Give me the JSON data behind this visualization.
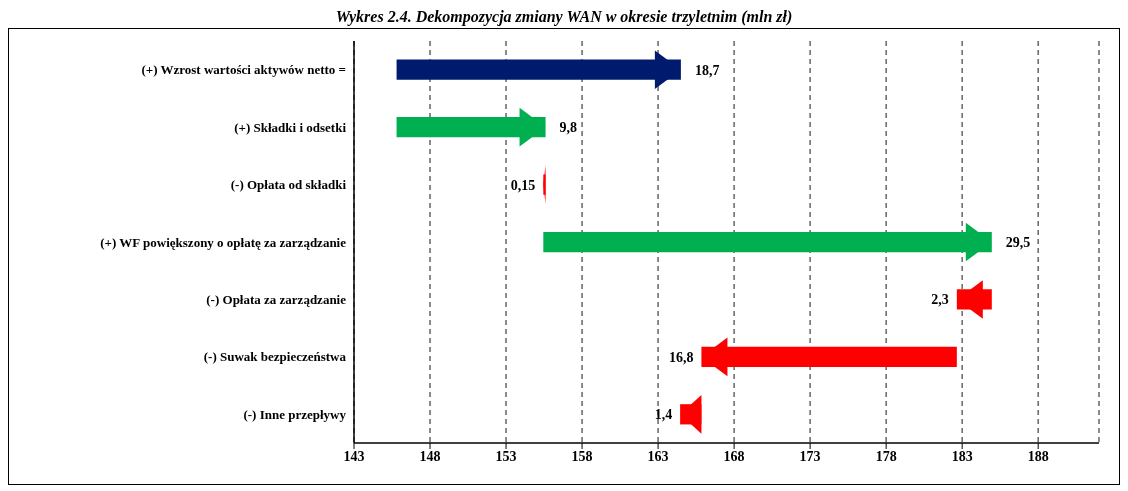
{
  "chart_data": {
    "type": "bar",
    "orientation": "horizontal",
    "title": "Wykres 2.4. Dekompozycja zmiany WAN w okresie trzyletnim (mln zł)",
    "categories": [
      "(+) Wzrost wartości aktywów netto =",
      "(+) Składki i odsetki",
      "(-) Opłata od składki",
      "(+) WF powiększony o opłatę za zarządzanie",
      "(-) Opłata za zarządzanie",
      "(-) Suwak bezpieczeństwa",
      "(-) Inne przepływy"
    ],
    "base": [
      145.8,
      145.8,
      155.6,
      155.45,
      184.95,
      182.65,
      165.85
    ],
    "values": [
      18.7,
      9.8,
      -0.15,
      29.5,
      -2.3,
      -16.8,
      -1.4
    ],
    "colors": [
      "#001a6e",
      "#00b050",
      "#ff0000",
      "#00b050",
      "#ff0000",
      "#ff0000",
      "#ff0000"
    ],
    "value_labels": [
      "18,7",
      "9,8",
      "0,15",
      "29,5",
      "2,3",
      "16,8",
      "1,4"
    ],
    "xlim": [
      143,
      192
    ],
    "xticks": [
      143,
      148,
      153,
      158,
      163,
      168,
      173,
      178,
      183,
      188
    ],
    "grid": "x",
    "legend": false
  }
}
